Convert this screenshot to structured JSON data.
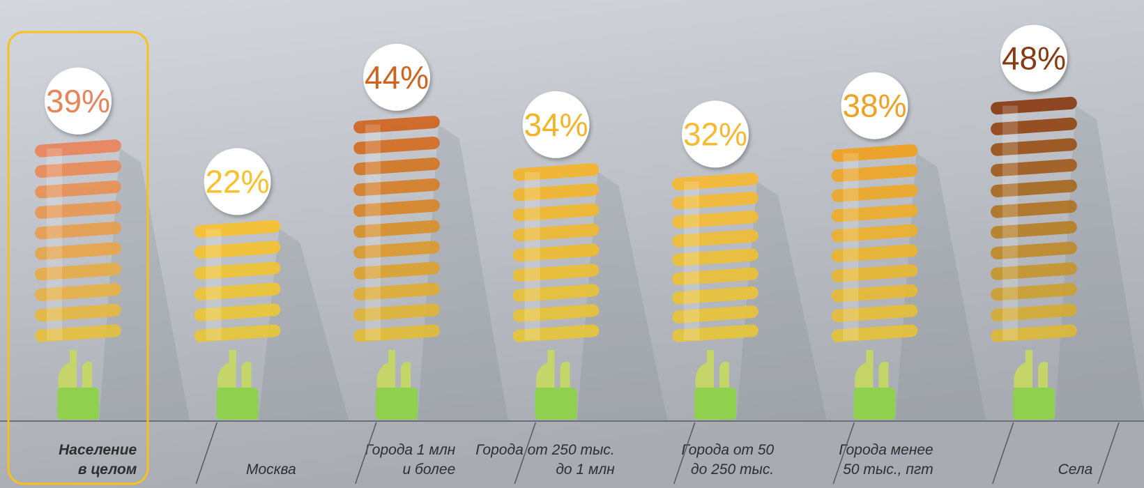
{
  "chart_data": {
    "type": "bulb",
    "categories": [
      "Население\nв целом",
      "Москва",
      "Города 1 млн\nи более",
      "Города от 250 тыс.\nдо 1 млн",
      "Города от 50\nдо 250 тыс.",
      "Города менее\n50 тыс., пгт",
      "Села"
    ],
    "values": [
      39,
      22,
      44,
      34,
      32,
      38,
      48
    ],
    "value_labels": [
      "39%",
      "22%",
      "44%",
      "34%",
      "32%",
      "38%",
      "48%"
    ],
    "colors": [
      "#e8835a",
      "#f7c12c",
      "#cf641f",
      "#f4b42a",
      "#f5b932",
      "#efa121",
      "#8a3a12"
    ],
    "highlight": 0
  }
}
